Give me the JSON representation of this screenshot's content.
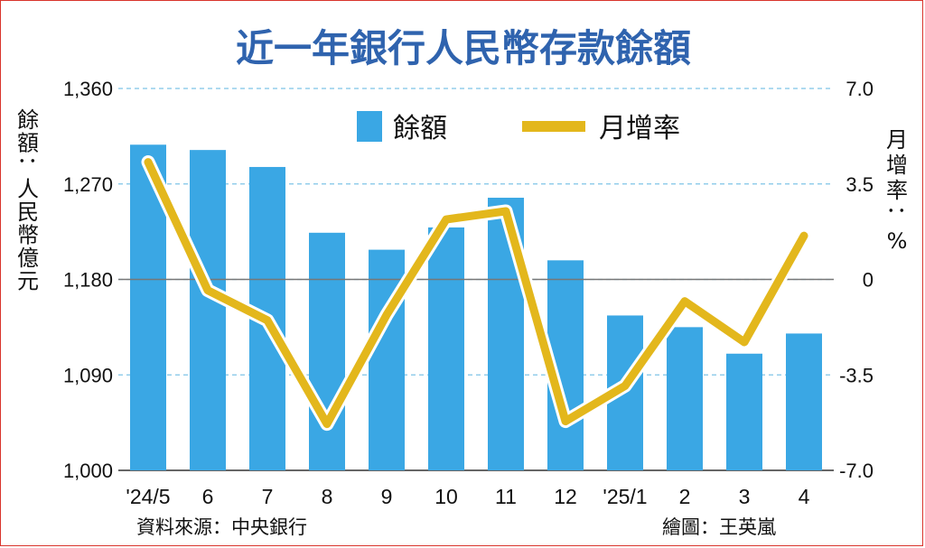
{
  "chart_data": {
    "type": "bar+line",
    "title": "近一年銀行人民幣存款餘額",
    "categories": [
      "'24/5",
      "6",
      "7",
      "8",
      "9",
      "10",
      "11",
      "12",
      "'25/1",
      "2",
      "3",
      "4"
    ],
    "series": [
      {
        "name": "餘額",
        "type": "bar",
        "axis": "left",
        "color": "#3aa7e4",
        "values": [
          1307,
          1302,
          1286,
          1224,
          1208,
          1229,
          1257,
          1198,
          1146,
          1135,
          1110,
          1129
        ]
      },
      {
        "name": "月增率",
        "type": "line",
        "axis": "right",
        "color": "#e3b71c",
        "values": [
          4.3,
          -0.4,
          -1.5,
          -5.3,
          -1.3,
          2.2,
          2.5,
          -5.2,
          -3.9,
          -0.8,
          -2.3,
          1.6
        ]
      }
    ],
    "left_axis": {
      "label": "餘額：人民幣億元",
      "ylim": [
        1000,
        1360
      ],
      "ticks": [
        1000,
        1090,
        1180,
        1270,
        1360
      ],
      "tick_labels": [
        "1,000",
        "1,090",
        "1,180",
        "1,270",
        "1,360"
      ]
    },
    "right_axis": {
      "label": "月增率：%",
      "ylim": [
        -7.0,
        7.0
      ],
      "ticks": [
        -7.0,
        -3.5,
        0,
        3.5,
        7.0
      ],
      "tick_labels": [
        "-7.0",
        "-3.5",
        "0",
        "3.5",
        "7.0"
      ]
    },
    "legend_position": "top-center",
    "grid": true,
    "source": "資料來源：中央銀行",
    "credit": "繪圖：王英嵐"
  }
}
